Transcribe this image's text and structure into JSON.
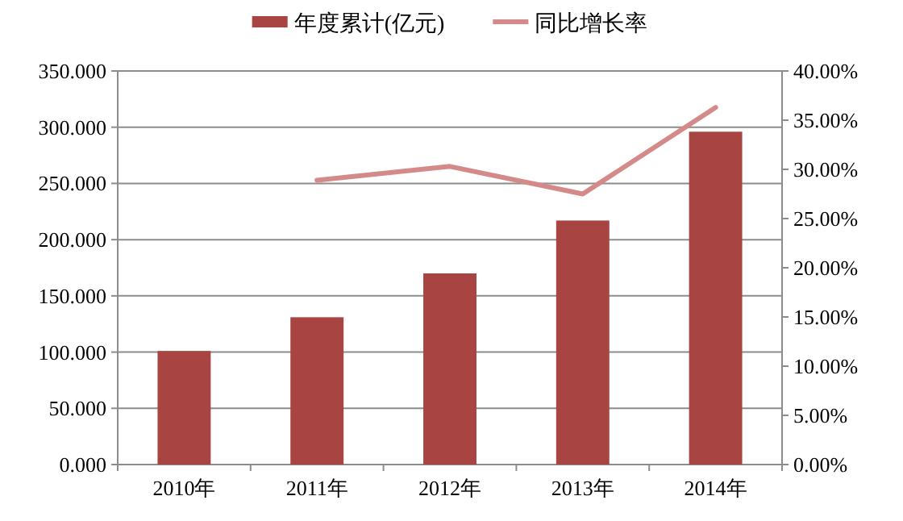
{
  "chart_data": {
    "type": "bar",
    "categories": [
      "2010年",
      "2011年",
      "2012年",
      "2013年",
      "2014年"
    ],
    "series": [
      {
        "name": "年度累计(亿元)",
        "color": "#a84442",
        "values": [
          101,
          131,
          170,
          217,
          296
        ]
      },
      {
        "name": "同比增长率",
        "type": "line",
        "axis": "y2",
        "color": "#d48a89",
        "values": [
          null,
          28.9,
          30.3,
          27.5,
          36.3
        ]
      }
    ],
    "ylim": [
      0,
      350
    ],
    "yticks": [
      {
        "value": 0,
        "label": "0.000"
      },
      {
        "value": 50,
        "label": "50.000"
      },
      {
        "value": 100,
        "label": "100.000"
      },
      {
        "value": 150,
        "label": "150.000"
      },
      {
        "value": 200,
        "label": "200.000"
      },
      {
        "value": 250,
        "label": "250.000"
      },
      {
        "value": 300,
        "label": "300.000"
      },
      {
        "value": 350,
        "label": "350.000"
      }
    ],
    "y2lim": [
      0,
      40
    ],
    "y2ticks": [
      {
        "value": 0,
        "label": "0.00%"
      },
      {
        "value": 5,
        "label": "5.00%"
      },
      {
        "value": 10,
        "label": "10.00%"
      },
      {
        "value": 15,
        "label": "15.00%"
      },
      {
        "value": 20,
        "label": "20.00%"
      },
      {
        "value": 25,
        "label": "25.00%"
      },
      {
        "value": 30,
        "label": "30.00%"
      },
      {
        "value": 35,
        "label": "35.00%"
      },
      {
        "value": 40,
        "label": "40.00%"
      }
    ],
    "grid": "y",
    "legend": "top",
    "marker": "none"
  }
}
